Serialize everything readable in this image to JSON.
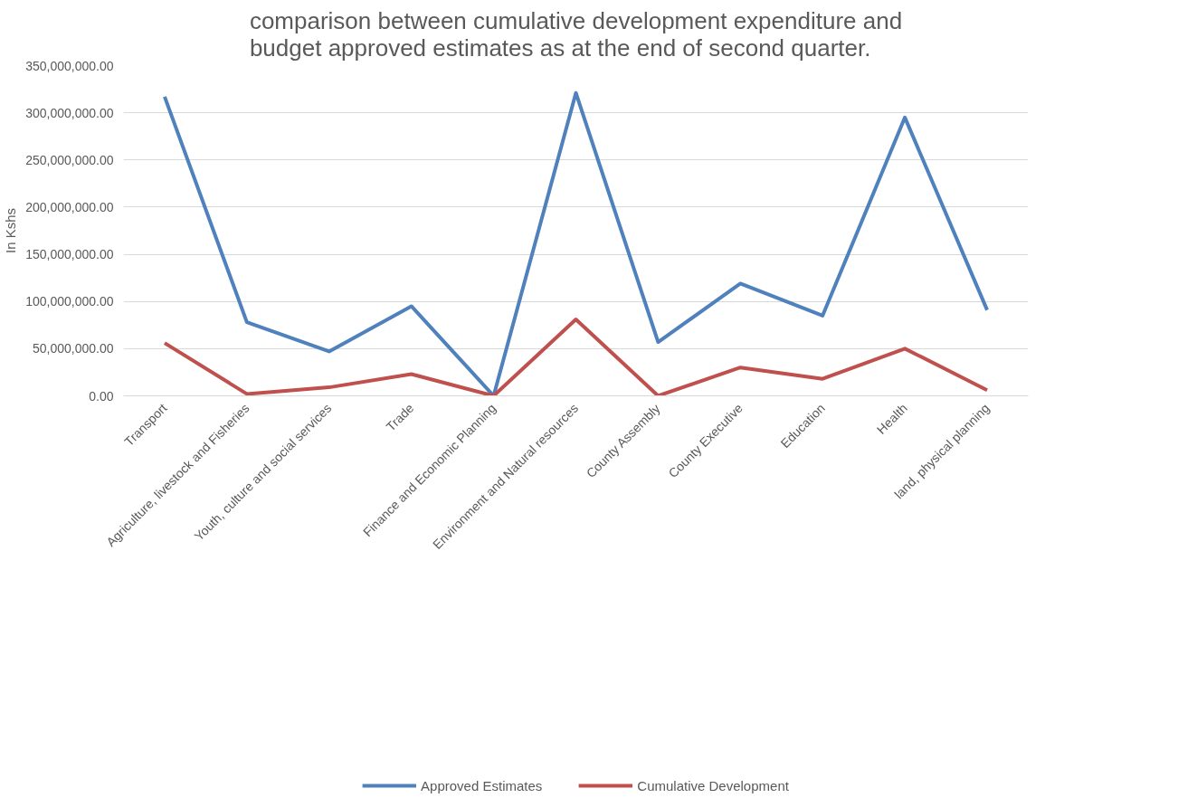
{
  "chart_data": {
    "type": "line",
    "title": "comparison between cumulative development expenditure and budget approved estimates as at the end of second quarter.",
    "ylabel": "In Kshs",
    "categories": [
      "Transport",
      "Agriculture, livestock and Fisheries",
      "Youth, culture and social services",
      "Trade",
      "Finance and Economic Planning",
      "Environment and Natural resources",
      "County Assembly",
      "County Executive",
      "Education",
      "Health",
      "land, physical planning"
    ],
    "series": [
      {
        "name": "Approved Estimates",
        "color": "#4f81bd",
        "values": [
          317000000,
          78000000,
          47000000,
          95000000,
          0,
          321000000,
          57000000,
          119000000,
          85000000,
          295000000,
          91000000
        ]
      },
      {
        "name": "Cumulative Development",
        "color": "#c0504d",
        "values": [
          56000000,
          2000000,
          9000000,
          23000000,
          0,
          81000000,
          0,
          30000000,
          18000000,
          50000000,
          6000000
        ]
      }
    ],
    "ylim": [
      0,
      350000000
    ],
    "yticks": [
      {
        "value": 0,
        "label": "0.00"
      },
      {
        "value": 50000000,
        "label": "50,000,000.00"
      },
      {
        "value": 100000000,
        "label": "100,000,000.00"
      },
      {
        "value": 150000000,
        "label": "150,000,000.00"
      },
      {
        "value": 200000000,
        "label": "200,000,000.00"
      },
      {
        "value": 250000000,
        "label": "250,000,000.00"
      },
      {
        "value": 300000000,
        "label": "300,000,000.00"
      },
      {
        "value": 350000000,
        "label": "350,000,000.00"
      }
    ],
    "grid": "y",
    "legend": "bottom",
    "marker": "none",
    "line_style": "solid"
  }
}
